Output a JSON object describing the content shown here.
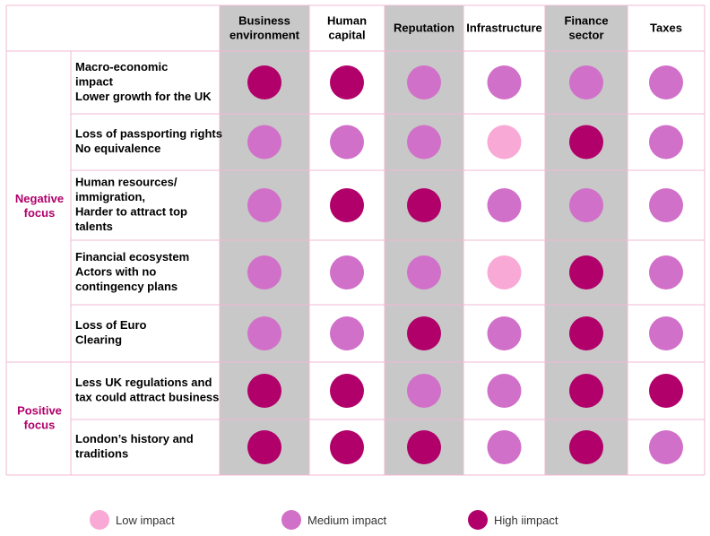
{
  "chart_data": {
    "type": "table",
    "columns": [
      "Business environment",
      "Human capital",
      "Reputation",
      "Infrastructure",
      "Finance sector",
      "Taxes"
    ],
    "column_lines": [
      [
        "Business",
        "environment"
      ],
      [
        "Human",
        "capital"
      ],
      [
        "Reputation"
      ],
      [
        "Infrastructure"
      ],
      [
        "Finance",
        "sector"
      ],
      [
        "Taxes"
      ]
    ],
    "shaded_columns": [
      0,
      2,
      4
    ],
    "groups": [
      {
        "label": "Negative focus",
        "lines": [
          "Negative",
          "focus"
        ],
        "rows": [
          0,
          1,
          2,
          3,
          4
        ]
      },
      {
        "label": "Positive focus",
        "lines": [
          "Positive",
          "focus"
        ],
        "rows": [
          5,
          6
        ]
      }
    ],
    "rows": [
      {
        "label": "Macro-economic impact Lower growth for the UK",
        "lines": [
          "Macro-economic",
          "impact",
          "Lower growth for the UK"
        ],
        "impacts": [
          "high",
          "high",
          "medium",
          "medium",
          "medium",
          "medium"
        ]
      },
      {
        "label": "Loss of passporting rights No equivalence",
        "lines": [
          "Loss of passporting rights",
          "No equivalence"
        ],
        "impacts": [
          "medium",
          "medium",
          "medium",
          "low",
          "high",
          "medium"
        ]
      },
      {
        "label": "Human resources/ immigration, Harder to attract top talents",
        "lines": [
          "Human resources/",
          "immigration,",
          "Harder to attract top",
          "talents"
        ],
        "impacts": [
          "medium",
          "high",
          "high",
          "medium",
          "medium",
          "medium"
        ]
      },
      {
        "label": "Financial ecosystem Actors with no contingency plans",
        "lines": [
          "Financial ecosystem",
          "Actors with no",
          "contingency plans"
        ],
        "impacts": [
          "medium",
          "medium",
          "medium",
          "low",
          "high",
          "medium"
        ]
      },
      {
        "label": "Loss of Euro Clearing",
        "lines": [
          "Loss of Euro",
          "Clearing"
        ],
        "impacts": [
          "medium",
          "medium",
          "high",
          "medium",
          "high",
          "medium"
        ]
      },
      {
        "label": "Less UK regulations and tax could attract business",
        "lines": [
          "Less UK regulations and",
          "tax could attract business"
        ],
        "impacts": [
          "high",
          "high",
          "medium",
          "medium",
          "high",
          "high"
        ]
      },
      {
        "label": "London's history and traditions",
        "lines": [
          "London’s history and",
          "traditions"
        ],
        "impacts": [
          "high",
          "high",
          "high",
          "medium",
          "high",
          "medium"
        ]
      }
    ],
    "legend": [
      {
        "key": "low",
        "label": "Low impact"
      },
      {
        "key": "medium",
        "label": "Medium impact"
      },
      {
        "key": "high",
        "label": "High iimpact"
      }
    ],
    "colors": {
      "low": "#f9a9d5",
      "medium": "#d170c9",
      "high": "#b1006a",
      "group_text": "#b1006a",
      "shade": "#c8c8c8",
      "border": "#f2b9d3"
    }
  }
}
